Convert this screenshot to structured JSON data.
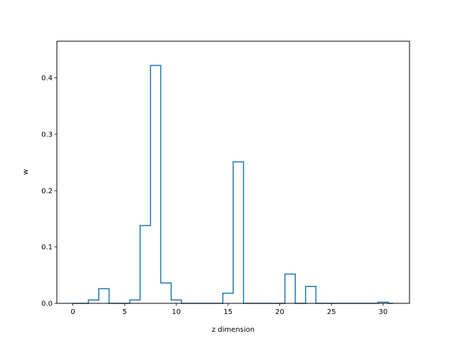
{
  "chart_data": {
    "type": "line",
    "drawstyle": "steps-mid",
    "title": "",
    "xlabel": "z dimension",
    "ylabel": "w",
    "xlim": [
      -1.55,
      32.55
    ],
    "ylim": [
      0,
      0.465
    ],
    "xticks": [
      0,
      5,
      10,
      15,
      20,
      25,
      30
    ],
    "xtick_labels": [
      "0",
      "5",
      "10",
      "15",
      "20",
      "25",
      "30"
    ],
    "yticks": [
      0.0,
      0.1,
      0.2,
      0.3,
      0.4
    ],
    "ytick_labels": [
      "0.0",
      "0.1",
      "0.2",
      "0.3",
      "0.4"
    ],
    "grid": false,
    "legend": false,
    "series": [
      {
        "color": "#1f77b4",
        "x": [
          0,
          1,
          2,
          3,
          4,
          5,
          6,
          7,
          8,
          9,
          10,
          11,
          12,
          13,
          14,
          15,
          16,
          17,
          18,
          19,
          20,
          21,
          22,
          23,
          24,
          25,
          26,
          27,
          28,
          29,
          30,
          31
        ],
        "y": [
          0.0,
          0.0,
          0.006,
          0.026,
          0.0,
          0.0,
          0.006,
          0.138,
          0.422,
          0.036,
          0.006,
          0.0,
          0.0,
          0.0,
          0.0,
          0.018,
          0.251,
          0.0,
          0.0,
          0.0,
          0.0,
          0.052,
          0.0,
          0.03,
          0.0,
          0.0,
          0.0,
          0.0,
          0.0,
          0.0,
          0.002,
          0.0
        ]
      }
    ]
  }
}
